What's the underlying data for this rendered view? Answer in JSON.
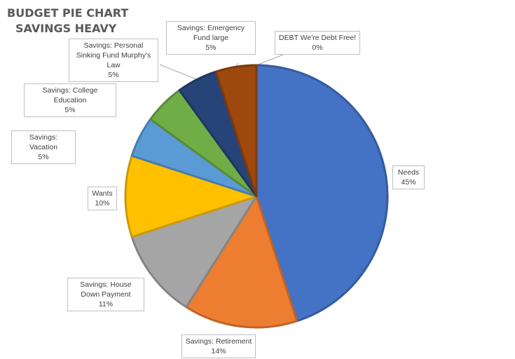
{
  "chart_data": {
    "type": "pie",
    "title": "BUDGET PIE CHART",
    "subtitle": "SAVINGS HEAVY",
    "slices": [
      {
        "label": "Needs",
        "value": 45,
        "pct_label": "45%",
        "color": "#4472C4"
      },
      {
        "label": "Savings: Retirement",
        "value": 14,
        "pct_label": "14%",
        "color": "#ED7D31"
      },
      {
        "label": "Savings: House Down Payment",
        "value": 11,
        "pct_label": "11%",
        "color": "#A5A5A5"
      },
      {
        "label": "Wants",
        "value": 10,
        "pct_label": "10%",
        "color": "#FFC000"
      },
      {
        "label": "Savings: Vacation",
        "value": 5,
        "pct_label": "5%",
        "color": "#5B9BD5"
      },
      {
        "label": "Savings: College Education",
        "value": 5,
        "pct_label": "5%",
        "color": "#70AD47"
      },
      {
        "label": "Savings: Personal Sinking Fund Murphy's Law",
        "value": 5,
        "pct_label": "5%",
        "color": "#264478"
      },
      {
        "label": "Savings: Emergency Fund large",
        "value": 5,
        "pct_label": "5%",
        "color": "#9E480E"
      },
      {
        "label": "DEBT We're Debt Free!",
        "value": 0,
        "pct_label": "0%",
        "color": "#636363"
      }
    ]
  }
}
